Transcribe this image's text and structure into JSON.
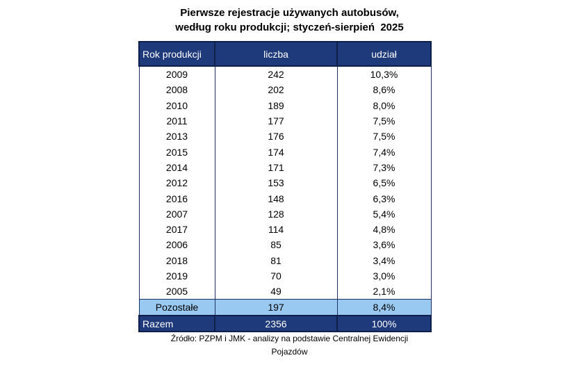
{
  "title": {
    "line1": "Pierwsze rejestracje używanych autobusów,",
    "line2": "według roku produkcji; styczeń-sierpień  2025"
  },
  "table": {
    "headers": [
      "Rok produkcji",
      "liczba",
      "udział"
    ],
    "rows": [
      {
        "year": "2009",
        "count": "242",
        "share": "10,3%"
      },
      {
        "year": "2008",
        "count": "202",
        "share": "8,6%"
      },
      {
        "year": "2010",
        "count": "189",
        "share": "8,0%"
      },
      {
        "year": "2011",
        "count": "177",
        "share": "7,5%"
      },
      {
        "year": "2013",
        "count": "176",
        "share": "7,5%"
      },
      {
        "year": "2015",
        "count": "174",
        "share": "7,4%"
      },
      {
        "year": "2014",
        "count": "171",
        "share": "7,3%"
      },
      {
        "year": "2012",
        "count": "153",
        "share": "6,5%"
      },
      {
        "year": "2016",
        "count": "148",
        "share": "6,3%"
      },
      {
        "year": "2007",
        "count": "128",
        "share": "5,4%"
      },
      {
        "year": "2017",
        "count": "114",
        "share": "4,8%"
      },
      {
        "year": "2006",
        "count": "85",
        "share": "3,6%"
      },
      {
        "year": "2018",
        "count": "81",
        "share": "3,4%"
      },
      {
        "year": "2019",
        "count": "70",
        "share": "3,0%"
      },
      {
        "year": "2005",
        "count": "49",
        "share": "2,1%"
      }
    ],
    "other": {
      "label": "Pozostałe",
      "count": "197",
      "share": "8,4%"
    },
    "total": {
      "label": "Razem",
      "count": "2356",
      "share": "100%"
    }
  },
  "source": {
    "line1": "Źródło: PZPM i JMK - analizy na podstawie Centralnej Ewidencji",
    "line2": "Pojazdów"
  },
  "colors": {
    "header_bg": "#1f3a7a",
    "other_bg": "#99c9f0",
    "total_bg": "#1f3a7a"
  }
}
